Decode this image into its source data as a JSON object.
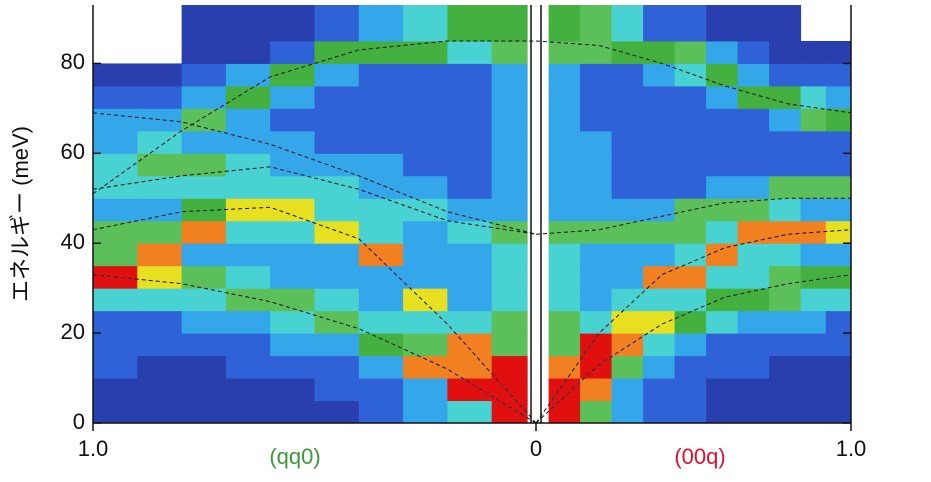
{
  "chart_data": [
    {
      "type": "heatmap",
      "xlabel": "(qq0)",
      "xlabel_color": "#3a9a3a",
      "ylabel": "エネルギー (meV)",
      "xlim": [
        1,
        0
      ],
      "xticks": [
        {
          "value": 1,
          "label": "1.0"
        },
        0
      ],
      "ylim": [
        0,
        93
      ],
      "yticks": [
        0,
        20,
        40,
        60,
        80
      ],
      "colormap": [
        "#3f2f8f",
        "#2a3fae",
        "#2f62d6",
        "#34a6ea",
        "#48d2d2",
        "#5cc05a",
        "#44b040",
        "#e6e020",
        "#f08020",
        "#e01010"
      ],
      "x_edges": [
        1,
        0.9,
        0.8,
        0.7,
        0.6,
        0.5,
        0.4,
        0.3,
        0.2,
        0.1,
        0.02
      ],
      "y_edges": [
        0,
        5,
        10,
        15,
        20,
        25,
        30,
        35,
        40,
        45,
        50,
        55,
        60,
        65,
        70,
        75,
        80,
        85,
        93
      ],
      "z": [
        [
          1,
          1,
          2,
          2,
          2,
          4,
          9,
          5,
          5,
          3,
          4,
          4,
          3,
          3,
          2,
          1,
          null,
          null
        ],
        [
          1,
          1,
          1,
          2,
          2,
          4,
          7,
          8,
          5,
          3,
          4,
          5,
          4,
          3,
          2,
          1,
          null,
          null
        ],
        [
          1,
          1,
          1,
          2,
          3,
          4,
          5,
          3,
          8,
          6,
          4,
          5,
          3,
          5,
          3,
          2,
          1,
          1
        ],
        [
          1,
          1,
          2,
          2,
          3,
          5,
          4,
          3,
          4,
          7,
          4,
          4,
          3,
          3,
          6,
          3,
          1,
          1
        ],
        [
          1,
          1,
          2,
          3,
          4,
          5,
          3,
          3,
          4,
          7,
          4,
          3,
          3,
          2,
          3,
          6,
          2,
          1
        ],
        [
          1,
          2,
          2,
          3,
          5,
          4,
          3,
          3,
          7,
          4,
          4,
          3,
          2,
          2,
          2,
          3,
          6,
          2
        ],
        [
          2,
          2,
          3,
          6,
          4,
          3,
          3,
          8,
          4,
          4,
          3,
          3,
          2,
          2,
          2,
          2,
          6,
          3
        ],
        [
          3,
          3,
          8,
          5,
          4,
          7,
          3,
          3,
          3,
          4,
          3,
          2,
          2,
          2,
          2,
          2,
          6,
          4
        ],
        [
          4,
          9,
          8,
          8,
          4,
          3,
          3,
          3,
          4,
          3,
          2,
          2,
          2,
          2,
          2,
          2,
          4,
          6
        ],
        [
          9,
          9,
          9,
          5,
          5,
          4,
          4,
          4,
          5,
          3,
          3,
          3,
          3,
          3,
          3,
          3,
          5,
          6
        ]
      ],
      "curve_x": [
        1,
        0.8,
        0.6,
        0.4,
        0.2,
        0
      ],
      "curves": [
        [
          51,
          65,
          77,
          83,
          85,
          85
        ],
        [
          69,
          67,
          62,
          55,
          47,
          42
        ],
        [
          52,
          55,
          57,
          52,
          45,
          42
        ],
        [
          43,
          47,
          48,
          41,
          22,
          0
        ],
        [
          33,
          31,
          27,
          21,
          12,
          0
        ]
      ]
    },
    {
      "type": "heatmap",
      "xlabel": "(00q)",
      "xlabel_color": "#e01030",
      "xlim": [
        0,
        1
      ],
      "xticks": [
        {
          "value": 1,
          "label": "1.0"
        }
      ],
      "ylim": [
        0,
        93
      ],
      "colormap": [
        "#3f2f8f",
        "#2a3fae",
        "#2f62d6",
        "#34a6ea",
        "#48d2d2",
        "#5cc05a",
        "#44b040",
        "#e6e020",
        "#f08020",
        "#e01010"
      ],
      "x_edges": [
        0.04,
        0.14,
        0.24,
        0.34,
        0.44,
        0.54,
        0.64,
        0.74,
        0.84,
        0.92,
        1
      ],
      "y_edges": [
        0,
        5,
        10,
        15,
        20,
        25,
        30,
        35,
        40,
        45,
        50,
        55,
        60,
        65,
        70,
        75,
        80,
        85,
        93
      ],
      "z": [
        [
          9,
          9,
          8,
          5,
          5,
          4,
          4,
          4,
          5,
          3,
          3,
          3,
          3,
          3,
          3,
          3,
          5,
          6
        ],
        [
          5,
          8,
          9,
          9,
          4,
          3,
          3,
          3,
          5,
          3,
          3,
          3,
          3,
          2,
          2,
          2,
          5,
          5
        ],
        [
          3,
          3,
          5,
          8,
          7,
          4,
          3,
          3,
          5,
          3,
          2,
          2,
          2,
          2,
          2,
          2,
          6,
          4
        ],
        [
          2,
          2,
          3,
          4,
          7,
          4,
          8,
          3,
          5,
          3,
          2,
          2,
          2,
          2,
          2,
          3,
          6,
          2
        ],
        [
          2,
          2,
          2,
          3,
          6,
          4,
          8,
          4,
          5,
          5,
          2,
          2,
          2,
          2,
          2,
          4,
          5,
          2
        ],
        [
          1,
          1,
          2,
          2,
          4,
          6,
          4,
          8,
          4,
          5,
          3,
          2,
          2,
          2,
          3,
          6,
          3,
          1
        ],
        [
          1,
          1,
          2,
          2,
          3,
          6,
          4,
          4,
          8,
          5,
          3,
          2,
          2,
          2,
          6,
          3,
          2,
          1
        ],
        [
          1,
          1,
          1,
          2,
          3,
          5,
          5,
          4,
          8,
          4,
          5,
          2,
          2,
          3,
          6,
          2,
          1,
          1
        ],
        [
          1,
          1,
          1,
          2,
          3,
          4,
          6,
          3,
          8,
          3,
          5,
          2,
          2,
          5,
          4,
          2,
          1,
          null
        ],
        [
          1,
          1,
          1,
          2,
          2,
          4,
          6,
          3,
          7,
          3,
          5,
          2,
          2,
          6,
          3,
          2,
          1,
          null
        ]
      ],
      "curve_x": [
        0,
        0.2,
        0.4,
        0.6,
        0.8,
        1
      ],
      "curves": [
        [
          85,
          84,
          80,
          75,
          71,
          69
        ],
        [
          42,
          43,
          46,
          49,
          50,
          50
        ],
        [
          0,
          20,
          33,
          39,
          42,
          43
        ],
        [
          0,
          13,
          22,
          28,
          31,
          33
        ]
      ]
    }
  ]
}
